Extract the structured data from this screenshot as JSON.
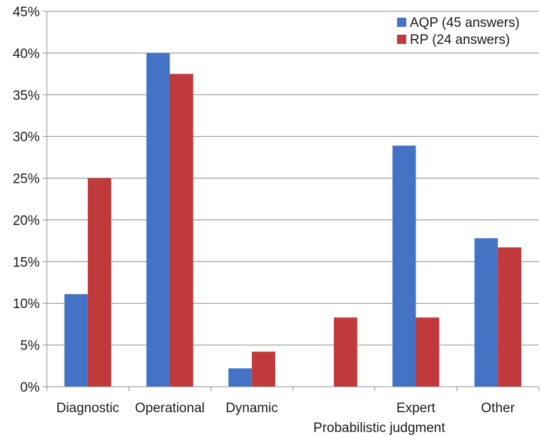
{
  "chart_data": {
    "type": "bar",
    "categories": [
      "Diagnostic",
      "Operational",
      "Dynamic",
      "Probabilistic judgment",
      "Expert",
      "Other"
    ],
    "series": [
      {
        "name": "AQP (45 answers)",
        "color": "#4472C4",
        "values": [
          11.1,
          40.0,
          2.2,
          0.0,
          28.9,
          17.8
        ]
      },
      {
        "name": "RP  (24 answers)",
        "color": "#C0393B",
        "values": [
          25.0,
          37.5,
          4.2,
          8.3,
          8.3,
          16.7
        ]
      }
    ],
    "ylim": [
      0,
      45
    ],
    "yticks": [
      0,
      5,
      10,
      15,
      20,
      25,
      30,
      35,
      40,
      45
    ],
    "ytick_labels": [
      "0%",
      "5%",
      "10%",
      "15%",
      "20%",
      "25%",
      "30%",
      "35%",
      "40%",
      "45%"
    ],
    "title": "",
    "xlabel": "",
    "ylabel": "",
    "grid": true,
    "legend_position": "top-right"
  }
}
